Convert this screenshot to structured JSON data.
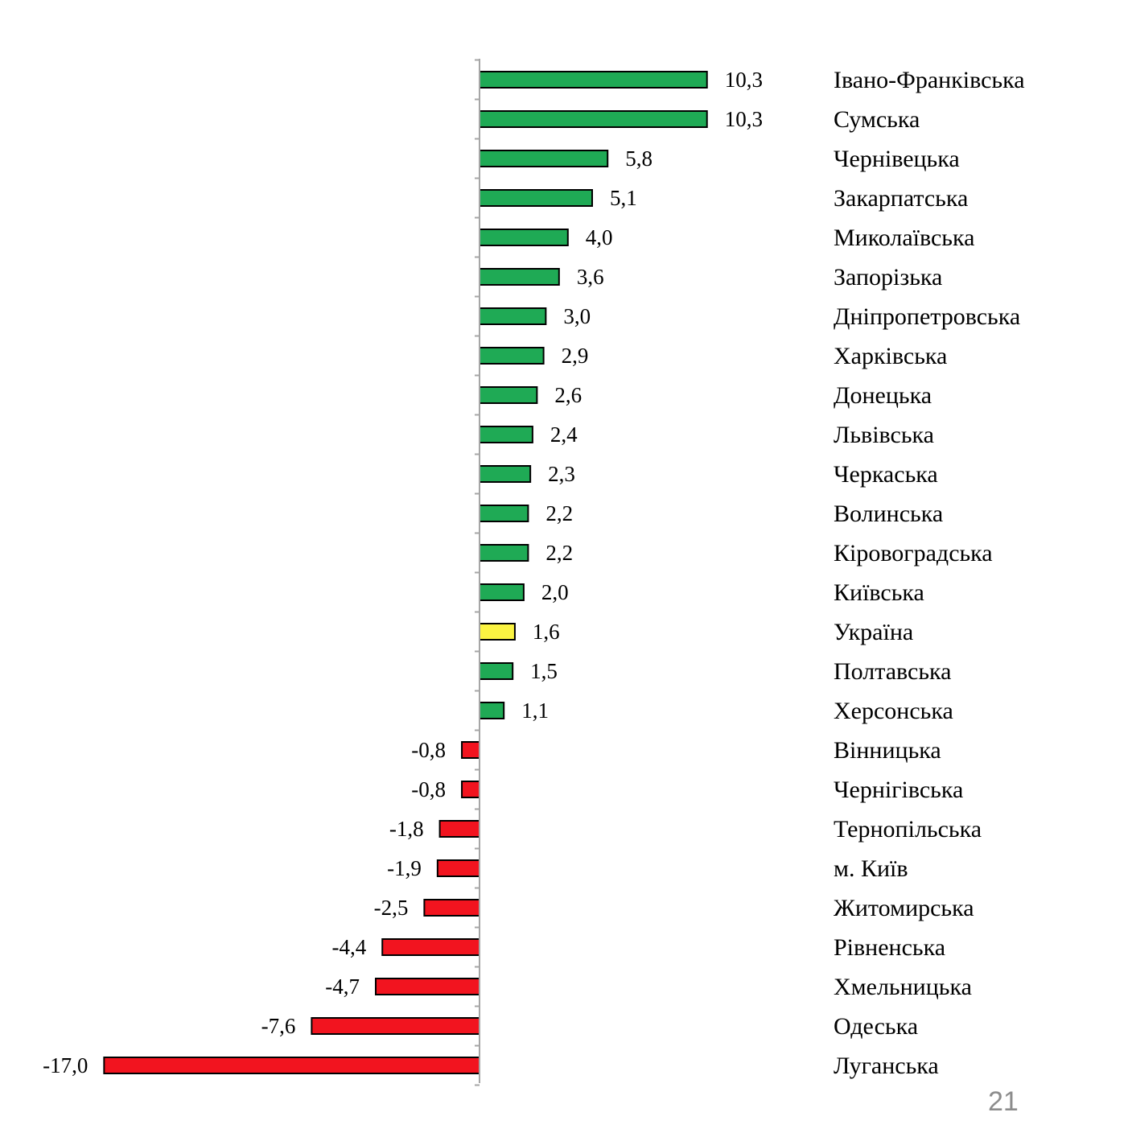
{
  "chart_data": {
    "type": "bar",
    "orientation": "horizontal",
    "categories": [
      "Івано-Франківська",
      "Сумська",
      "Чернівецька",
      "Закарпатська",
      "Миколаївська",
      "Запорізька",
      "Дніпропетровська",
      "Харківська",
      "Донецька",
      "Львівська",
      "Черкаська",
      "Волинська",
      "Кіровоградська",
      "Київська",
      "Україна",
      "Полтавська",
      "Херсонська",
      "Вінницька",
      "Чернігівська",
      "Тернопільська",
      "м. Київ",
      "Житомирська",
      "Рівненська",
      "Хмельницька",
      "Одеська",
      "Луганська"
    ],
    "values": [
      10.3,
      10.3,
      5.8,
      5.1,
      4.0,
      3.6,
      3.0,
      2.9,
      2.6,
      2.4,
      2.3,
      2.2,
      2.2,
      2.0,
      1.6,
      1.5,
      1.1,
      -0.8,
      -0.8,
      -1.8,
      -1.9,
      -2.5,
      -4.4,
      -4.7,
      -7.6,
      -17.0
    ],
    "value_labels": [
      "10,3",
      "10,3",
      "5,8",
      "5,1",
      "4,0",
      "3,6",
      "3,0",
      "2,9",
      "2,6",
      "2,4",
      "2,3",
      "2,2",
      "2,2",
      "2,0",
      "1,6",
      "1,5",
      "1,1",
      "-0,8",
      "-0,8",
      "-1,8",
      "-1,9",
      "-2,5",
      "-4,4",
      "-4,7",
      "-7,6",
      "-17,0"
    ],
    "highlight_category": "Україна",
    "colors": {
      "positive": "#1faa55",
      "negative": "#f2141f",
      "highlight": "#fbf442",
      "outline": "#000000",
      "axis": "#a6a6a6"
    },
    "xlim": [
      -17.0,
      10.3
    ],
    "grid": false,
    "legend": "none",
    "title": "",
    "xlabel": "",
    "ylabel": ""
  },
  "page": {
    "number": "21"
  }
}
